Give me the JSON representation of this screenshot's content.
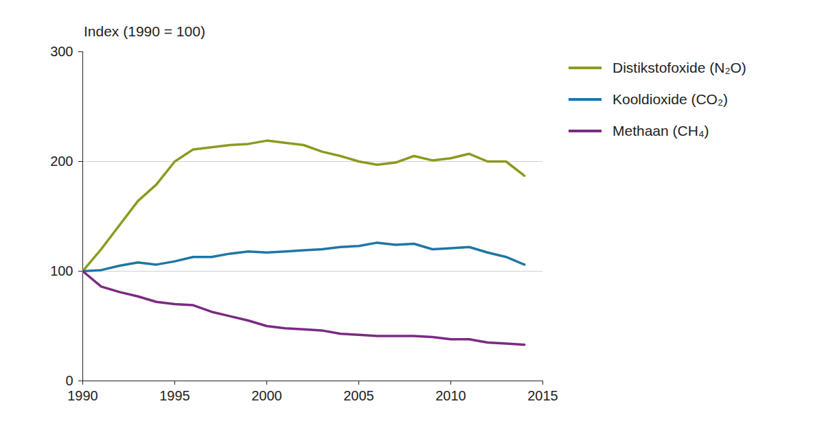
{
  "chart_data": {
    "type": "line",
    "y_label": "Index (1990 = 100)",
    "x": [
      1990,
      1991,
      1992,
      1993,
      1994,
      1995,
      1996,
      1997,
      1998,
      1999,
      2000,
      2001,
      2002,
      2003,
      2004,
      2005,
      2006,
      2007,
      2008,
      2009,
      2010,
      2011,
      2012,
      2013,
      2014
    ],
    "series": [
      {
        "name": "Distikstofoxide (N₂O)",
        "color": "#8c9a1e",
        "values": [
          100,
          120,
          142,
          164,
          179,
          200,
          211,
          213,
          215,
          216,
          219,
          217,
          215,
          209,
          205,
          200,
          197,
          199,
          205,
          201,
          203,
          207,
          200,
          200,
          187
        ]
      },
      {
        "name": "Kooldioxide (CO₂)",
        "color": "#1f76a6",
        "values": [
          100,
          101,
          105,
          108,
          106,
          109,
          113,
          113,
          116,
          118,
          117,
          118,
          119,
          120,
          122,
          123,
          126,
          124,
          125,
          120,
          121,
          122,
          117,
          113,
          106
        ]
      },
      {
        "name": "Methaan (CH₄)",
        "color": "#7b2a83",
        "values": [
          100,
          86,
          81,
          77,
          72,
          70,
          69,
          63,
          59,
          55,
          50,
          48,
          47,
          46,
          43,
          42,
          41,
          41,
          41,
          40,
          38,
          38,
          35,
          34,
          33
        ]
      }
    ],
    "xlim": [
      1990,
      2015
    ],
    "xticks": [
      1990,
      1995,
      2000,
      2005,
      2010,
      2015
    ],
    "ylim": [
      0,
      300
    ],
    "yticks": [
      0,
      100,
      200,
      300
    ],
    "grid": true,
    "legend": "right"
  }
}
